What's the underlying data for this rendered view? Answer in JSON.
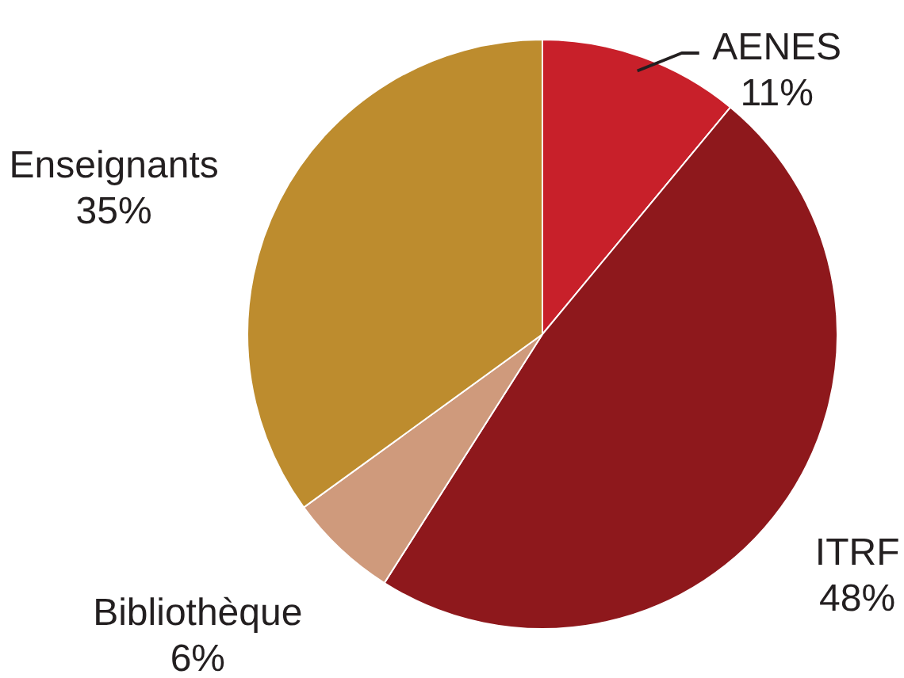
{
  "chart_data": {
    "type": "pie",
    "categories": [
      "AENES",
      "ITRF",
      "Bibliothèque",
      "Enseignants"
    ],
    "values": [
      11,
      48,
      6,
      35
    ],
    "colors": [
      "#c8202a",
      "#8e181c",
      "#cf9a7c",
      "#bd8c2e"
    ],
    "value_labels": [
      "11%",
      "48%",
      "6%",
      "35%"
    ]
  }
}
